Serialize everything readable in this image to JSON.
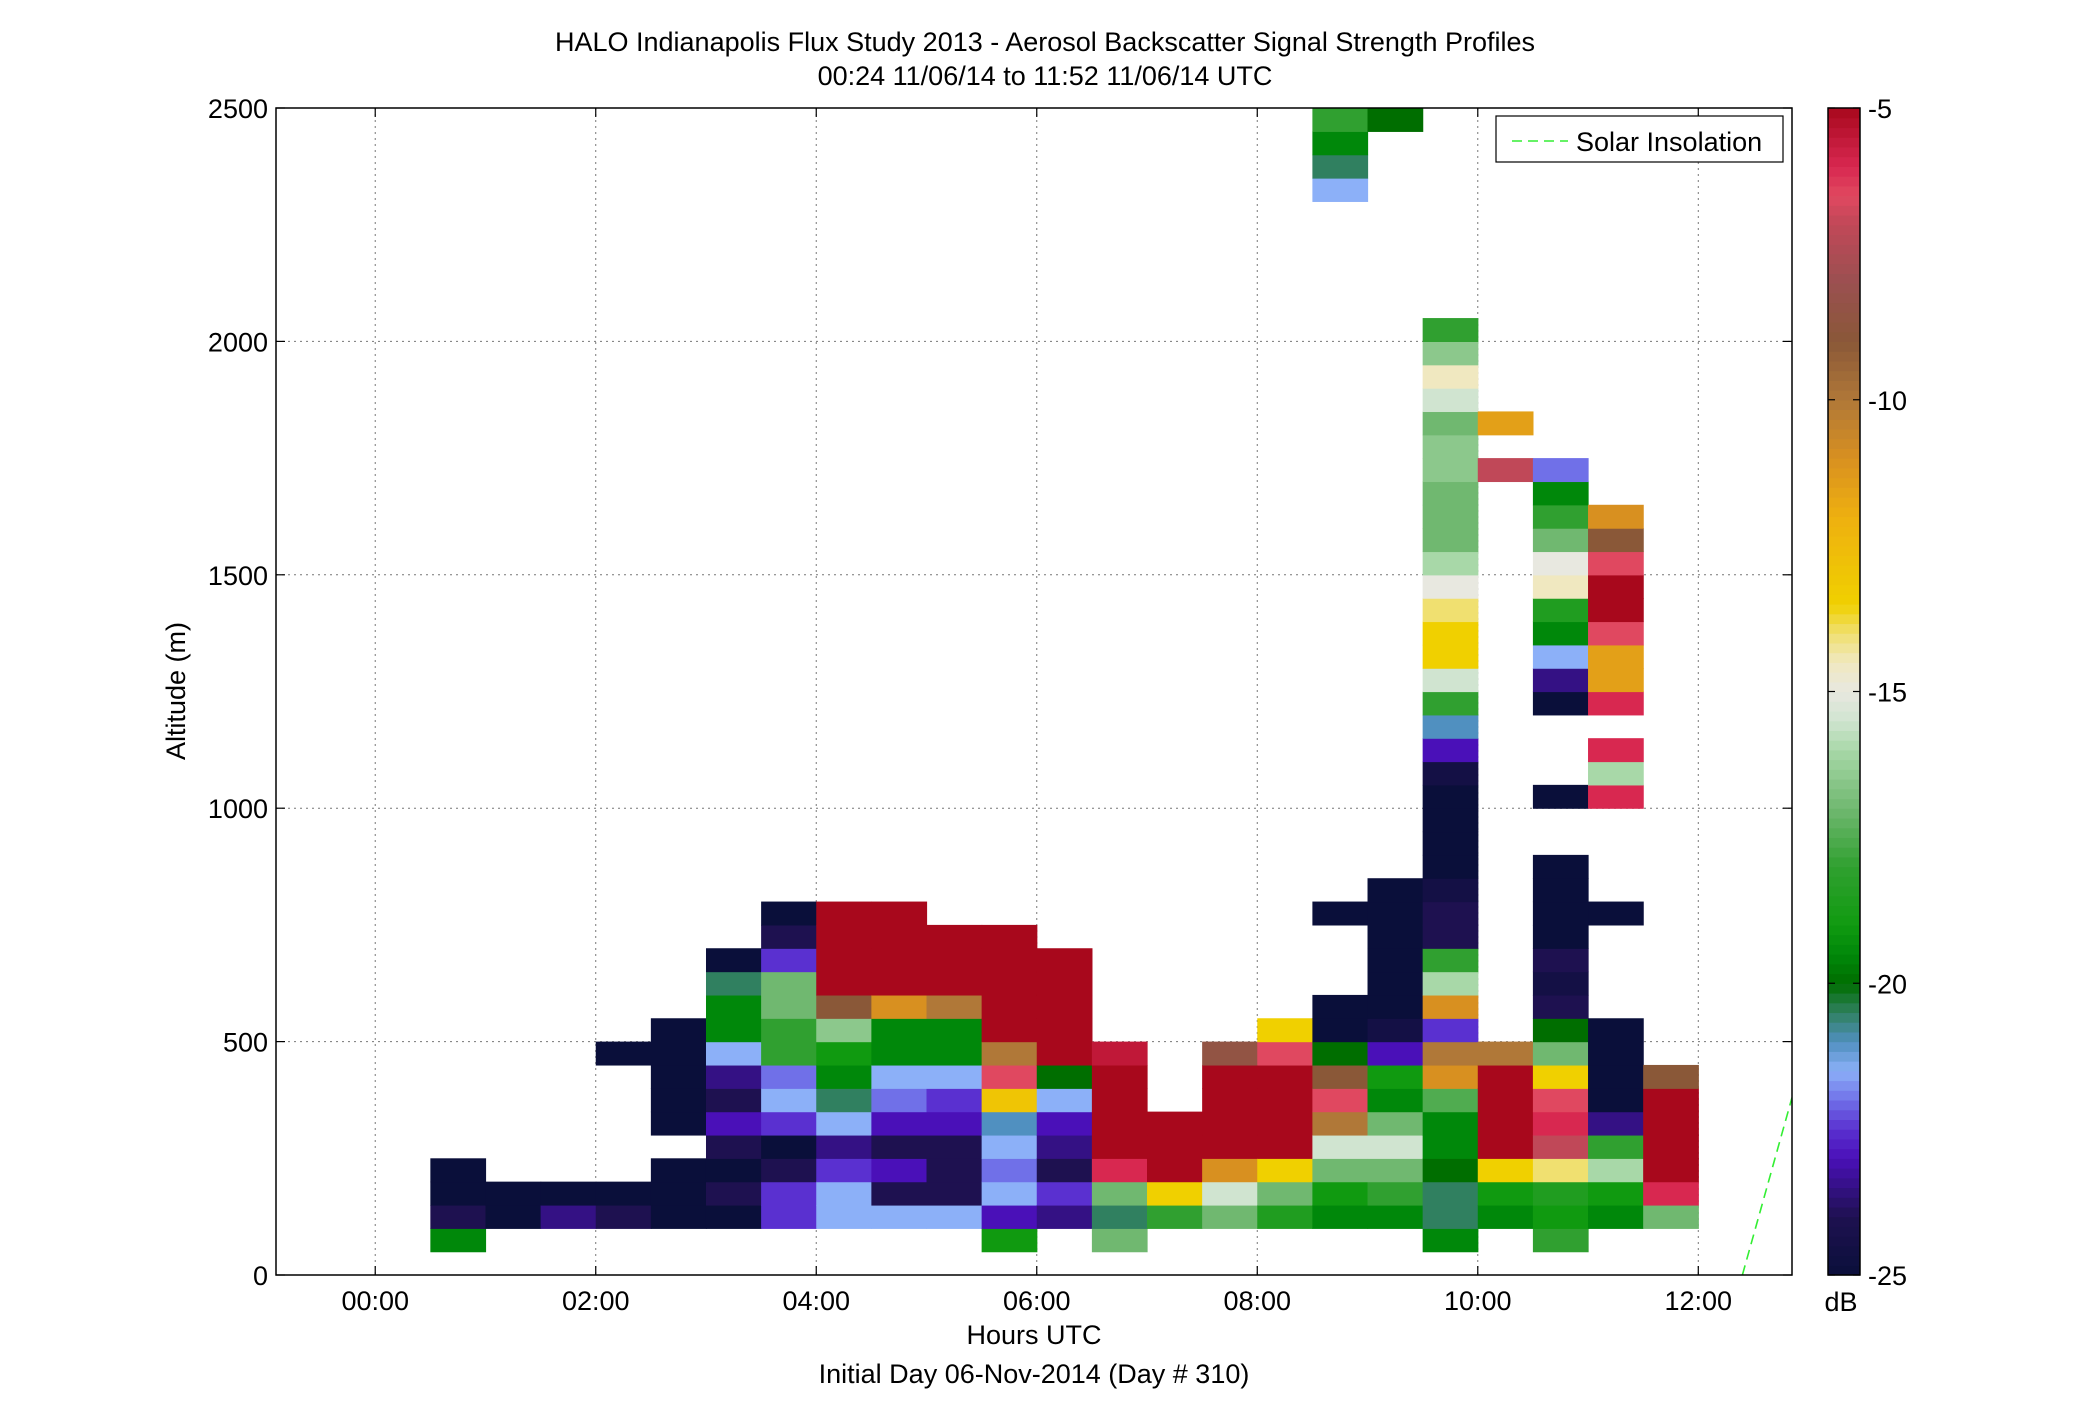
{
  "chart_data": {
    "type": "heatmap",
    "title": "HALO Indianapolis Flux Study 2013 - Aerosol Backscatter Signal Strength Profiles",
    "subtitle": "00:24 11/06/14 to 11:52 11/06/14  UTC",
    "xlabel": "Hours UTC",
    "xlabel2": "Initial Day 06-Nov-2014 (Day # 310)",
    "ylabel": "Altitude (m)",
    "xlim": [
      -0.9,
      12.85
    ],
    "ylim": [
      0,
      2500
    ],
    "x_ticks": [
      0,
      2,
      4,
      6,
      8,
      10,
      12
    ],
    "x_tick_labels": [
      "00:00",
      "02:00",
      "04:00",
      "06:00",
      "08:00",
      "10:00",
      "12:00"
    ],
    "y_ticks": [
      0,
      500,
      1000,
      1500,
      2000,
      2500
    ],
    "y_tick_labels": [
      "0",
      "500",
      "1000",
      "1500",
      "2000",
      "2500"
    ],
    "grid": true,
    "bin_width_hours": 0.5,
    "bin_height_m": 50,
    "colorbar": {
      "unit": "dB",
      "range": [
        -25,
        -5
      ],
      "ticks": [
        -25,
        -20,
        -15,
        -10,
        -5
      ],
      "tick_labels": [
        "-25",
        "-20",
        "-15",
        "-10",
        "-5"
      ]
    },
    "legend": {
      "placement": "top-right",
      "entries": [
        {
          "name": "Solar Insolation",
          "color": "#33ee33",
          "style": "dashed"
        }
      ]
    },
    "solar_insolation": {
      "x": [
        12.4,
        12.85
      ],
      "y": [
        0,
        380
      ]
    },
    "cells": [
      {
        "t": 0.75,
        "rows": [
          [
            75,
            -19.5
          ],
          [
            125,
            -24
          ],
          [
            175,
            -25
          ],
          [
            225,
            -25
          ]
        ]
      },
      {
        "t": 1.25,
        "rows": [
          [
            125,
            -25
          ],
          [
            175,
            -25
          ]
        ]
      },
      {
        "t": 1.75,
        "rows": [
          [
            125,
            -23.5
          ],
          [
            175,
            -25
          ]
        ]
      },
      {
        "t": 2.25,
        "rows": [
          [
            125,
            -24
          ],
          [
            175,
            -25
          ]
        ]
      },
      {
        "t": 2.75,
        "rows": [
          [
            125,
            -25
          ],
          [
            175,
            -25
          ],
          [
            225,
            -25
          ],
          [
            325,
            -25
          ],
          [
            375,
            -25
          ],
          [
            425,
            -25
          ],
          [
            475,
            -25
          ],
          [
            525,
            -25
          ]
        ]
      },
      {
        "t": 2.25,
        "rows": [
          [
            475,
            -25
          ]
        ]
      },
      {
        "t": 3.25,
        "rows": [
          [
            125,
            -25
          ],
          [
            175,
            -24
          ],
          [
            225,
            -25
          ],
          [
            275,
            -24
          ],
          [
            325,
            -23
          ],
          [
            375,
            -24
          ],
          [
            425,
            -23.5
          ],
          [
            475,
            -21.5
          ],
          [
            525,
            -19.5
          ],
          [
            575,
            -19.5
          ],
          [
            625,
            -20.5
          ],
          [
            675,
            -25
          ]
        ]
      },
      {
        "t": 3.75,
        "rows": [
          [
            125,
            -22.5
          ],
          [
            175,
            -22.5
          ],
          [
            225,
            -24
          ],
          [
            275,
            -25
          ],
          [
            325,
            -22.5
          ],
          [
            375,
            -21.5
          ],
          [
            425,
            -22
          ],
          [
            475,
            -18
          ],
          [
            525,
            -18
          ],
          [
            575,
            -17
          ],
          [
            625,
            -17
          ],
          [
            675,
            -22.5
          ],
          [
            725,
            -24
          ],
          [
            775,
            -25
          ]
        ]
      },
      {
        "t": 4.25,
        "rows": [
          [
            125,
            -21.5
          ],
          [
            175,
            -21.5
          ],
          [
            225,
            -22.5
          ],
          [
            275,
            -23.5
          ],
          [
            325,
            -21.5
          ],
          [
            375,
            -20.5
          ],
          [
            425,
            -19.5
          ],
          [
            475,
            -19
          ],
          [
            525,
            -16.5
          ],
          [
            575,
            -9
          ],
          [
            625,
            -5
          ],
          [
            675,
            -5
          ],
          [
            725,
            -5
          ],
          [
            775,
            -5
          ]
        ]
      },
      {
        "t": 4.75,
        "rows": [
          [
            125,
            -21.5
          ],
          [
            175,
            -24
          ],
          [
            225,
            -23
          ],
          [
            275,
            -24
          ],
          [
            325,
            -23
          ],
          [
            375,
            -22
          ],
          [
            425,
            -21.5
          ],
          [
            475,
            -19.5
          ],
          [
            525,
            -19.5
          ],
          [
            575,
            -11
          ],
          [
            625,
            -5
          ],
          [
            675,
            -5
          ],
          [
            725,
            -5
          ],
          [
            775,
            -5
          ]
        ]
      },
      {
        "t": 5.25,
        "rows": [
          [
            125,
            -21.5
          ],
          [
            175,
            -24
          ],
          [
            225,
            -24
          ],
          [
            275,
            -24
          ],
          [
            325,
            -23
          ],
          [
            375,
            -22.5
          ],
          [
            425,
            -21.5
          ],
          [
            475,
            -19.5
          ],
          [
            525,
            -19.5
          ],
          [
            575,
            -10
          ],
          [
            625,
            -5
          ],
          [
            675,
            -5
          ],
          [
            725,
            -5
          ]
        ]
      },
      {
        "t": 5.75,
        "rows": [
          [
            75,
            -19
          ],
          [
            125,
            -23
          ],
          [
            175,
            -21.5
          ],
          [
            225,
            -22
          ],
          [
            275,
            -21.5
          ],
          [
            325,
            -21
          ],
          [
            375,
            -13
          ],
          [
            425,
            -6.5
          ],
          [
            475,
            -10
          ],
          [
            525,
            -5
          ],
          [
            575,
            -5
          ],
          [
            625,
            -5
          ],
          [
            675,
            -5
          ],
          [
            725,
            -5
          ]
        ]
      },
      {
        "t": 6.25,
        "rows": [
          [
            125,
            -23.5
          ],
          [
            175,
            -22.5
          ],
          [
            225,
            -24
          ],
          [
            275,
            -23.5
          ],
          [
            325,
            -23
          ],
          [
            375,
            -21.5
          ],
          [
            425,
            -20
          ],
          [
            475,
            -5
          ],
          [
            525,
            -5
          ],
          [
            575,
            -5
          ],
          [
            625,
            -5
          ],
          [
            675,
            -5
          ]
        ]
      },
      {
        "t": 6.75,
        "rows": [
          [
            75,
            -17
          ],
          [
            125,
            -20.5
          ],
          [
            175,
            -17
          ],
          [
            225,
            -6
          ],
          [
            275,
            -5
          ],
          [
            325,
            -5
          ],
          [
            375,
            -5
          ],
          [
            425,
            -5
          ],
          [
            475,
            -5.5
          ]
        ]
      },
      {
        "t": 7.25,
        "rows": [
          [
            125,
            -18
          ],
          [
            175,
            -13.5
          ],
          [
            225,
            -5
          ],
          [
            275,
            -5
          ],
          [
            325,
            -5
          ]
        ]
      },
      {
        "t": 7.75,
        "rows": [
          [
            125,
            -17
          ],
          [
            175,
            -15.5
          ],
          [
            225,
            -11
          ],
          [
            275,
            -5
          ],
          [
            325,
            -5
          ],
          [
            375,
            -5
          ],
          [
            425,
            -5
          ],
          [
            475,
            -8.5
          ]
        ]
      },
      {
        "t": 8.25,
        "rows": [
          [
            125,
            -18.5
          ],
          [
            175,
            -17
          ],
          [
            225,
            -13.5
          ],
          [
            275,
            -5
          ],
          [
            325,
            -5
          ],
          [
            375,
            -5
          ],
          [
            425,
            -5
          ],
          [
            475,
            -6.5
          ],
          [
            525,
            -13.5
          ]
        ]
      },
      {
        "t": 8.75,
        "rows": [
          [
            125,
            -19.5
          ],
          [
            175,
            -19
          ],
          [
            225,
            -17
          ],
          [
            275,
            -15.5
          ],
          [
            325,
            -10
          ],
          [
            375,
            -6.5
          ],
          [
            425,
            -9
          ],
          [
            475,
            -20
          ],
          [
            525,
            -25
          ],
          [
            575,
            -25
          ],
          [
            775,
            -25
          ],
          [
            2325,
            -21.5
          ],
          [
            2375,
            -20.5
          ],
          [
            2425,
            -19.5
          ],
          [
            2475,
            -18
          ]
        ]
      },
      {
        "t": 9.25,
        "rows": [
          [
            125,
            -19.5
          ],
          [
            175,
            -18
          ],
          [
            225,
            -17
          ],
          [
            275,
            -15.5
          ],
          [
            325,
            -17
          ],
          [
            375,
            -19.5
          ],
          [
            425,
            -19
          ],
          [
            475,
            -23
          ],
          [
            525,
            -24.5
          ],
          [
            575,
            -25
          ],
          [
            625,
            -25
          ],
          [
            675,
            -25
          ],
          [
            725,
            -25
          ],
          [
            775,
            -25
          ],
          [
            825,
            -25
          ],
          [
            2475,
            -20
          ]
        ]
      },
      {
        "t": 9.75,
        "rows": [
          [
            75,
            -19.5
          ],
          [
            125,
            -20.5
          ],
          [
            175,
            -20.5
          ],
          [
            225,
            -20
          ],
          [
            275,
            -19.5
          ],
          [
            325,
            -19.5
          ],
          [
            375,
            -17.5
          ],
          [
            425,
            -11
          ],
          [
            475,
            -10
          ],
          [
            525,
            -22.5
          ],
          [
            575,
            -11
          ],
          [
            625,
            -16
          ],
          [
            675,
            -18
          ],
          [
            725,
            -24
          ],
          [
            775,
            -24
          ],
          [
            825,
            -24.5
          ],
          [
            875,
            -25
          ],
          [
            925,
            -25
          ],
          [
            975,
            -25
          ],
          [
            1025,
            -25
          ],
          [
            1075,
            -24.5
          ],
          [
            1125,
            -23
          ],
          [
            1175,
            -21
          ],
          [
            1225,
            -18
          ],
          [
            1275,
            -15.5
          ],
          [
            1325,
            -13.5
          ],
          [
            1375,
            -13.5
          ],
          [
            1425,
            -14
          ],
          [
            1475,
            -15
          ],
          [
            1525,
            -16
          ],
          [
            1575,
            -17
          ],
          [
            1625,
            -17
          ],
          [
            1675,
            -17
          ],
          [
            1725,
            -16.5
          ],
          [
            1775,
            -16.5
          ],
          [
            1825,
            -17
          ],
          [
            1875,
            -15.5
          ],
          [
            1925,
            -14.5
          ],
          [
            1975,
            -16.5
          ],
          [
            2025,
            -18
          ]
        ]
      },
      {
        "t": 10.25,
        "rows": [
          [
            125,
            -19.5
          ],
          [
            175,
            -19
          ],
          [
            225,
            -13.5
          ],
          [
            275,
            -5
          ],
          [
            325,
            -5
          ],
          [
            375,
            -5
          ],
          [
            425,
            -5
          ],
          [
            475,
            -10
          ],
          [
            1725,
            -7
          ],
          [
            1825,
            -11.5
          ]
        ]
      },
      {
        "t": 10.75,
        "rows": [
          [
            75,
            -18
          ],
          [
            125,
            -19
          ],
          [
            175,
            -18.5
          ],
          [
            225,
            -14
          ],
          [
            275,
            -7
          ],
          [
            325,
            -6
          ],
          [
            375,
            -6.5
          ],
          [
            425,
            -13.5
          ],
          [
            475,
            -17
          ],
          [
            525,
            -20
          ],
          [
            575,
            -24
          ],
          [
            625,
            -24.5
          ],
          [
            675,
            -24
          ],
          [
            725,
            -25
          ],
          [
            775,
            -25
          ],
          [
            825,
            -25
          ],
          [
            875,
            -25
          ],
          [
            1025,
            -25
          ],
          [
            1225,
            -25
          ],
          [
            1275,
            -23.5
          ],
          [
            1325,
            -21.5
          ],
          [
            1375,
            -19.5
          ],
          [
            1425,
            -18.5
          ],
          [
            1475,
            -14.5
          ],
          [
            1525,
            -15
          ],
          [
            1575,
            -17
          ],
          [
            1625,
            -18
          ],
          [
            1675,
            -19.5
          ],
          [
            1725,
            -22
          ]
        ]
      },
      {
        "t": 11.25,
        "rows": [
          [
            125,
            -19.5
          ],
          [
            175,
            -19
          ],
          [
            225,
            -16
          ],
          [
            275,
            -18
          ],
          [
            325,
            -23.5
          ],
          [
            375,
            -25
          ],
          [
            425,
            -25
          ],
          [
            475,
            -25
          ],
          [
            525,
            -25
          ],
          [
            775,
            -25
          ],
          [
            1025,
            -6
          ],
          [
            1075,
            -16
          ],
          [
            1125,
            -6
          ],
          [
            1225,
            -6
          ],
          [
            1275,
            -11.5
          ],
          [
            1325,
            -11.5
          ],
          [
            1375,
            -6.5
          ],
          [
            1425,
            -5
          ],
          [
            1475,
            -5
          ],
          [
            1525,
            -6.5
          ],
          [
            1575,
            -9
          ],
          [
            1625,
            -11
          ]
        ]
      },
      {
        "t": 11.75,
        "rows": [
          [
            125,
            -17
          ],
          [
            175,
            -6
          ],
          [
            225,
            -5
          ],
          [
            275,
            -5
          ],
          [
            325,
            -5
          ],
          [
            375,
            -5
          ],
          [
            425,
            -9
          ]
        ]
      }
    ]
  }
}
